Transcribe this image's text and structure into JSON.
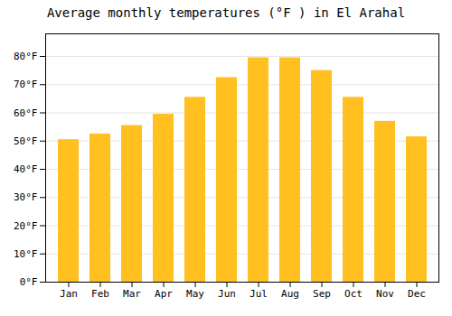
{
  "chart_data": {
    "type": "bar",
    "title": "Average monthly temperatures (°F ) in El Arahal",
    "categories": [
      "Jan",
      "Feb",
      "Mar",
      "Apr",
      "May",
      "Jun",
      "Jul",
      "Aug",
      "Sep",
      "Oct",
      "Nov",
      "Dec"
    ],
    "values": [
      50.5,
      52.5,
      55.5,
      59.5,
      65.5,
      72.5,
      79.5,
      79.5,
      75.0,
      65.5,
      57.0,
      51.5
    ],
    "color": "#FFC020",
    "ylim": [
      0,
      88
    ],
    "yticks": [
      {
        "value": 0,
        "label": "0°F"
      },
      {
        "value": 10,
        "label": "10°F"
      },
      {
        "value": 20,
        "label": "20°F"
      },
      {
        "value": 30,
        "label": "30°F"
      },
      {
        "value": 40,
        "label": "40°F"
      },
      {
        "value": 50,
        "label": "50°F"
      },
      {
        "value": 60,
        "label": "60°F"
      },
      {
        "value": 70,
        "label": "70°F"
      },
      {
        "value": 80,
        "label": "80°F"
      }
    ],
    "grid": true
  }
}
